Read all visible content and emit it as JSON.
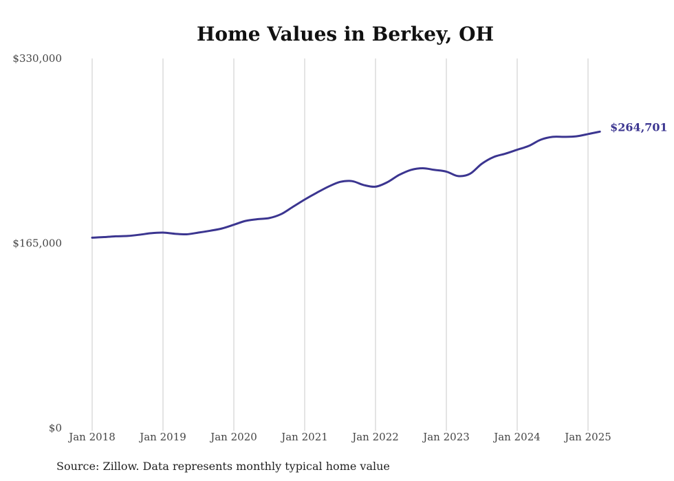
{
  "chart_data": {
    "type": "line",
    "title": "Home Values in Berkey, OH",
    "xlabel": "",
    "ylabel": "",
    "ylim": [
      0,
      330000
    ],
    "yticks": [
      0,
      165000,
      330000
    ],
    "ytick_labels": [
      "$0",
      "$165,000",
      "$330,000"
    ],
    "xticks": [
      "2018-01",
      "2019-01",
      "2020-01",
      "2021-01",
      "2022-01",
      "2023-01",
      "2024-01",
      "2025-01"
    ],
    "xtick_labels": [
      "Jan 2018",
      "Jan 2019",
      "Jan 2020",
      "Jan 2021",
      "Jan 2022",
      "Jan 2023",
      "Jan 2024",
      "Jan 2025"
    ],
    "xlim": [
      "2018-01",
      "2025-03"
    ],
    "grid": "vertical",
    "series": [
      {
        "color": "#3b3590",
        "points": [
          [
            "2018-01",
            170000
          ],
          [
            "2018-03",
            170500
          ],
          [
            "2018-05",
            171200
          ],
          [
            "2018-07",
            171500
          ],
          [
            "2018-09",
            172600
          ],
          [
            "2018-11",
            174000
          ],
          [
            "2019-01",
            174500
          ],
          [
            "2019-03",
            173500
          ],
          [
            "2019-05",
            173000
          ],
          [
            "2019-07",
            174500
          ],
          [
            "2019-09",
            176200
          ],
          [
            "2019-11",
            178200
          ],
          [
            "2020-01",
            181500
          ],
          [
            "2020-03",
            185000
          ],
          [
            "2020-05",
            186500
          ],
          [
            "2020-07",
            187500
          ],
          [
            "2020-09",
            191000
          ],
          [
            "2020-11",
            197500
          ],
          [
            "2021-01",
            204000
          ],
          [
            "2021-03",
            210000
          ],
          [
            "2021-05",
            215500
          ],
          [
            "2021-07",
            219800
          ],
          [
            "2021-09",
            220500
          ],
          [
            "2021-11",
            217000
          ],
          [
            "2022-01",
            215500
          ],
          [
            "2022-03",
            219500
          ],
          [
            "2022-05",
            226000
          ],
          [
            "2022-07",
            230500
          ],
          [
            "2022-09",
            232000
          ],
          [
            "2022-11",
            230500
          ],
          [
            "2023-01",
            229000
          ],
          [
            "2023-03",
            225000
          ],
          [
            "2023-05",
            227000
          ],
          [
            "2023-07",
            236000
          ],
          [
            "2023-09",
            242000
          ],
          [
            "2023-11",
            245000
          ],
          [
            "2024-01",
            248500
          ],
          [
            "2024-03",
            252000
          ],
          [
            "2024-05",
            257500
          ],
          [
            "2024-07",
            260000
          ],
          [
            "2024-09",
            260000
          ],
          [
            "2024-11",
            260500
          ],
          [
            "2025-01",
            262500
          ],
          [
            "2025-03",
            264701
          ]
        ],
        "end_label": "$264,701"
      }
    ],
    "source": "Source: Zillow. Data represents monthly typical home value"
  }
}
